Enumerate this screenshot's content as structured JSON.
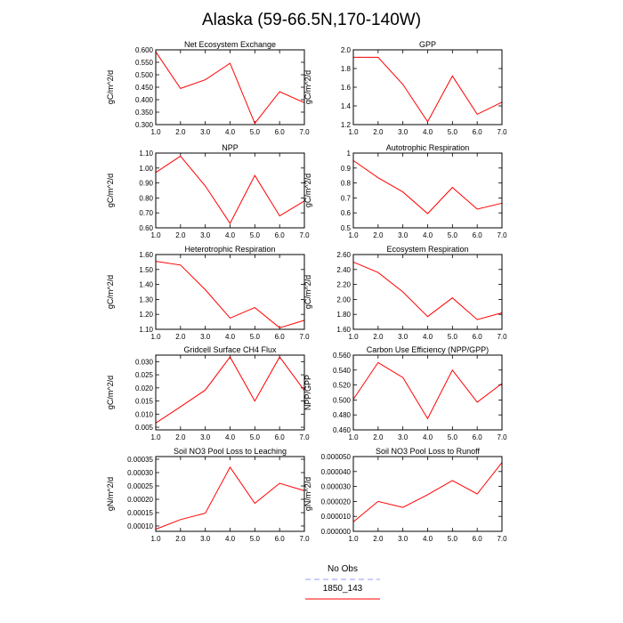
{
  "title": "Alaska (59-66.5N,170-140W)",
  "legend": [
    {
      "name": "No Obs",
      "color": "#9999ff",
      "dash": true
    },
    {
      "name": "1850_143",
      "color": "#ff0000",
      "dash": false
    }
  ],
  "chart_data": [
    {
      "type": "line",
      "title": "Net Ecosystem Exchange",
      "ylabel": "gC/m^2/d",
      "x": [
        1,
        2,
        3,
        4,
        5,
        6,
        7
      ],
      "values": [
        0.592,
        0.445,
        0.48,
        0.546,
        0.305,
        0.432,
        0.388
      ],
      "xlim": [
        1,
        7
      ],
      "ylim": [
        0.3,
        0.6
      ],
      "xticks": [
        "1.0",
        "2.0",
        "3.0",
        "4.0",
        "5.0",
        "6.0",
        "7.0"
      ],
      "yticks": [
        "0.300",
        "0.350",
        "0.400",
        "0.450",
        "0.500",
        "0.550",
        "0.600"
      ],
      "series_color": "#ff0000"
    },
    {
      "type": "line",
      "title": "GPP",
      "ylabel": "gC/m^2/d",
      "x": [
        1,
        2,
        3,
        4,
        5,
        6,
        7
      ],
      "values": [
        1.92,
        1.92,
        1.63,
        1.23,
        1.72,
        1.31,
        1.44
      ],
      "xlim": [
        1,
        7
      ],
      "ylim": [
        1.2,
        2.0
      ],
      "xticks": [
        "1.0",
        "2.0",
        "3.0",
        "4.0",
        "5.0",
        "6.0",
        "7.0"
      ],
      "yticks": [
        "1.2",
        "1.4",
        "1.6",
        "1.8",
        "2.0"
      ],
      "series_color": "#ff0000"
    },
    {
      "type": "line",
      "title": "NPP",
      "ylabel": "gC/m^2/d",
      "x": [
        1,
        2,
        3,
        4,
        5,
        6,
        7
      ],
      "values": [
        0.97,
        1.08,
        0.88,
        0.63,
        0.95,
        0.68,
        0.78
      ],
      "xlim": [
        1,
        7
      ],
      "ylim": [
        0.6,
        1.1
      ],
      "xticks": [
        "1.0",
        "2.0",
        "3.0",
        "4.0",
        "5.0",
        "6.0",
        "7.0"
      ],
      "yticks": [
        "0.60",
        "0.70",
        "0.80",
        "0.90",
        "1.00",
        "1.10"
      ],
      "series_color": "#ff0000"
    },
    {
      "type": "line",
      "title": "Autotrophic Respiration",
      "ylabel": "gC/m^2/d",
      "x": [
        1,
        2,
        3,
        4,
        5,
        6,
        7
      ],
      "values": [
        0.95,
        0.835,
        0.74,
        0.595,
        0.77,
        0.625,
        0.665
      ],
      "xlim": [
        1,
        7
      ],
      "ylim": [
        0.5,
        1.0
      ],
      "xticks": [
        "1.0",
        "2.0",
        "3.0",
        "4.0",
        "5.0",
        "6.0",
        "7.0"
      ],
      "yticks": [
        "0.5",
        "0.6",
        "0.7",
        "0.8",
        "0.9",
        "1"
      ],
      "series_color": "#ff0000"
    },
    {
      "type": "line",
      "title": "Heterotrophic Respiration",
      "ylabel": "gC/m^2/d",
      "x": [
        1,
        2,
        3,
        4,
        5,
        6,
        7
      ],
      "values": [
        1.555,
        1.53,
        1.365,
        1.175,
        1.245,
        1.11,
        1.16
      ],
      "xlim": [
        1,
        7
      ],
      "ylim": [
        1.1,
        1.6
      ],
      "xticks": [
        "1.0",
        "2.0",
        "3.0",
        "4.0",
        "5.0",
        "6.0",
        "7.0"
      ],
      "yticks": [
        "1.10",
        "1.20",
        "1.30",
        "1.40",
        "1.50",
        "1.60"
      ],
      "series_color": "#ff0000"
    },
    {
      "type": "line",
      "title": "Ecosystem Respiration",
      "ylabel": "gC/m^2/d",
      "x": [
        1,
        2,
        3,
        4,
        5,
        6,
        7
      ],
      "values": [
        2.5,
        2.36,
        2.1,
        1.77,
        2.02,
        1.73,
        1.82
      ],
      "xlim": [
        1,
        7
      ],
      "ylim": [
        1.6,
        2.6
      ],
      "xticks": [
        "1.0",
        "2.0",
        "3.0",
        "4.0",
        "5.0",
        "6.0",
        "7.0"
      ],
      "yticks": [
        "1.60",
        "1.80",
        "2.00",
        "2.20",
        "2.40",
        "2.60"
      ],
      "series_color": "#ff0000"
    },
    {
      "type": "line",
      "title": "Gridcell Surface CH4 Flux",
      "ylabel": "gC/m^2/d",
      "x": [
        1,
        2,
        3,
        4,
        5,
        6,
        7
      ],
      "values": [
        0.0066,
        0.0128,
        0.0192,
        0.0318,
        0.015,
        0.0318,
        0.019
      ],
      "xlim": [
        1,
        7
      ],
      "ylim": [
        0.004,
        0.0325
      ],
      "xticks": [
        "1.0",
        "2.0",
        "3.0",
        "4.0",
        "5.0",
        "6.0",
        "7.0"
      ],
      "ytick_values": [
        0.005,
        0.01,
        0.015,
        0.02,
        0.025,
        0.03
      ],
      "yticks": [
        "0.005",
        "0.010",
        "0.015",
        "0.020",
        "0.025",
        "0.030"
      ],
      "series_color": "#ff0000"
    },
    {
      "type": "line",
      "title": "Carbon Use Efficiency (NPP/GPP)",
      "ylabel": "NPP/GPP",
      "x": [
        1,
        2,
        3,
        4,
        5,
        6,
        7
      ],
      "values": [
        0.501,
        0.55,
        0.53,
        0.475,
        0.54,
        0.497,
        0.522
      ],
      "xlim": [
        1,
        7
      ],
      "ylim": [
        0.46,
        0.56
      ],
      "xticks": [
        "1.0",
        "2.0",
        "3.0",
        "4.0",
        "5.0",
        "6.0",
        "7.0"
      ],
      "yticks": [
        "0.460",
        "0.480",
        "0.500",
        "0.520",
        "0.540",
        "0.560"
      ],
      "series_color": "#ff0000"
    },
    {
      "type": "line",
      "title": "Soil NO3 Pool Loss to Leaching",
      "ylabel": "gN/m^2/d",
      "x": [
        1,
        2,
        3,
        4,
        5,
        6,
        7
      ],
      "values": [
        8.8e-05,
        0.000124,
        0.000148,
        0.00032,
        0.000185,
        0.00026,
        0.000232
      ],
      "xlim": [
        1,
        7
      ],
      "ylim": [
        8e-05,
        0.00036
      ],
      "xticks": [
        "1.0",
        "2.0",
        "3.0",
        "4.0",
        "5.0",
        "6.0",
        "7.0"
      ],
      "ytick_values": [
        0.0001,
        0.00015,
        0.0002,
        0.00025,
        0.0003,
        0.00035
      ],
      "yticks": [
        "0.00010",
        "0.00015",
        "0.00020",
        "0.00025",
        "0.00030",
        "0.00035"
      ],
      "series_color": "#ff0000"
    },
    {
      "type": "line",
      "title": "Soil NO3 Pool Loss to Runoff",
      "ylabel": "gN/m^2/d",
      "x": [
        1,
        2,
        3,
        4,
        5,
        6,
        7
      ],
      "values": [
        6.3e-06,
        2e-05,
        1.6e-05,
        2.45e-05,
        3.4e-05,
        2.5e-05,
        4.6e-05
      ],
      "xlim": [
        1,
        7
      ],
      "ylim": [
        0.0,
        5e-05
      ],
      "xticks": [
        "1.0",
        "2.0",
        "3.0",
        "4.0",
        "5.0",
        "6.0",
        "7.0"
      ],
      "yticks": [
        "0.000000",
        "0.000010",
        "0.000020",
        "0.000030",
        "0.000040",
        "0.000050"
      ],
      "series_color": "#ff0000"
    }
  ]
}
